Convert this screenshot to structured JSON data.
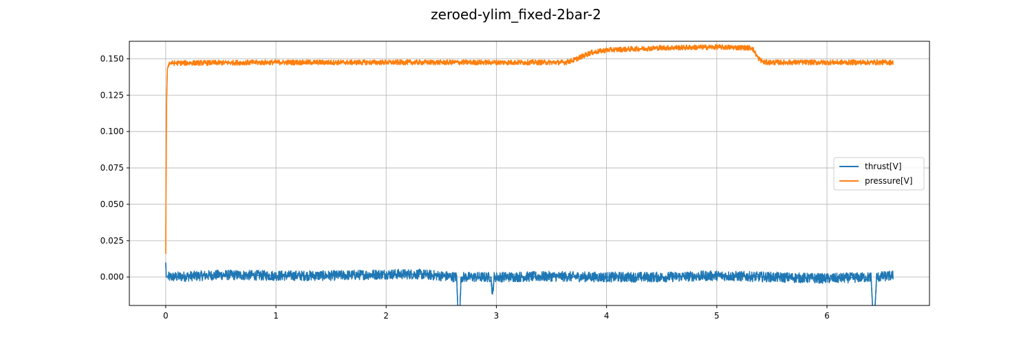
{
  "chart_data": {
    "type": "line",
    "title": "zeroed-ylim_fixed-2bar-2",
    "xlabel": "",
    "ylabel": "",
    "xlim": [
      -0.33,
      6.93
    ],
    "ylim": [
      -0.0195,
      0.162
    ],
    "xticks": [
      0,
      1,
      2,
      3,
      4,
      5,
      6
    ],
    "xtick_labels": [
      "0",
      "1",
      "2",
      "3",
      "4",
      "5",
      "6"
    ],
    "yticks": [
      0.0,
      0.025,
      0.05,
      0.075,
      0.1,
      0.125,
      0.15
    ],
    "ytick_labels": [
      "0.000",
      "0.025",
      "0.050",
      "0.075",
      "0.100",
      "0.125",
      "0.150"
    ],
    "grid": true,
    "legend_position": "center-right",
    "colors": {
      "thrust": "#1f77b4",
      "pressure": "#ff7f0e"
    },
    "series": [
      {
        "name": "thrust[V]",
        "color": "#1f77b4",
        "noise_amplitude": 0.0035,
        "x": [
          0.0,
          0.005,
          0.02,
          0.5,
          1.0,
          1.5,
          2.0,
          2.3,
          2.64,
          2.655,
          2.665,
          2.68,
          2.95,
          2.965,
          2.98,
          3.5,
          4.0,
          4.5,
          5.0,
          5.5,
          6.0,
          6.4,
          6.42,
          6.43,
          6.45,
          6.6
        ],
        "y": [
          0.01,
          0.0,
          0.0,
          0.0015,
          0.001,
          0.001,
          0.002,
          0.002,
          0.0,
          -0.03,
          -0.03,
          0.0,
          0.0,
          -0.012,
          0.0,
          0.0005,
          0.0,
          0.0,
          0.001,
          0.0,
          -0.001,
          0.0,
          -0.03,
          -0.03,
          0.0,
          0.001
        ]
      },
      {
        "name": "pressure[V]",
        "color": "#ff7f0e",
        "noise_amplitude": 0.0018,
        "x": [
          0.0,
          0.003,
          0.008,
          0.015,
          0.03,
          1.0,
          2.0,
          3.0,
          3.62,
          3.7,
          3.85,
          4.0,
          4.5,
          5.0,
          5.32,
          5.38,
          5.43,
          6.0,
          6.6
        ],
        "y": [
          0.016,
          0.06,
          0.12,
          0.143,
          0.147,
          0.1475,
          0.1475,
          0.1475,
          0.1475,
          0.149,
          0.154,
          0.156,
          0.1575,
          0.158,
          0.1575,
          0.15,
          0.1475,
          0.1475,
          0.1475
        ]
      }
    ]
  }
}
